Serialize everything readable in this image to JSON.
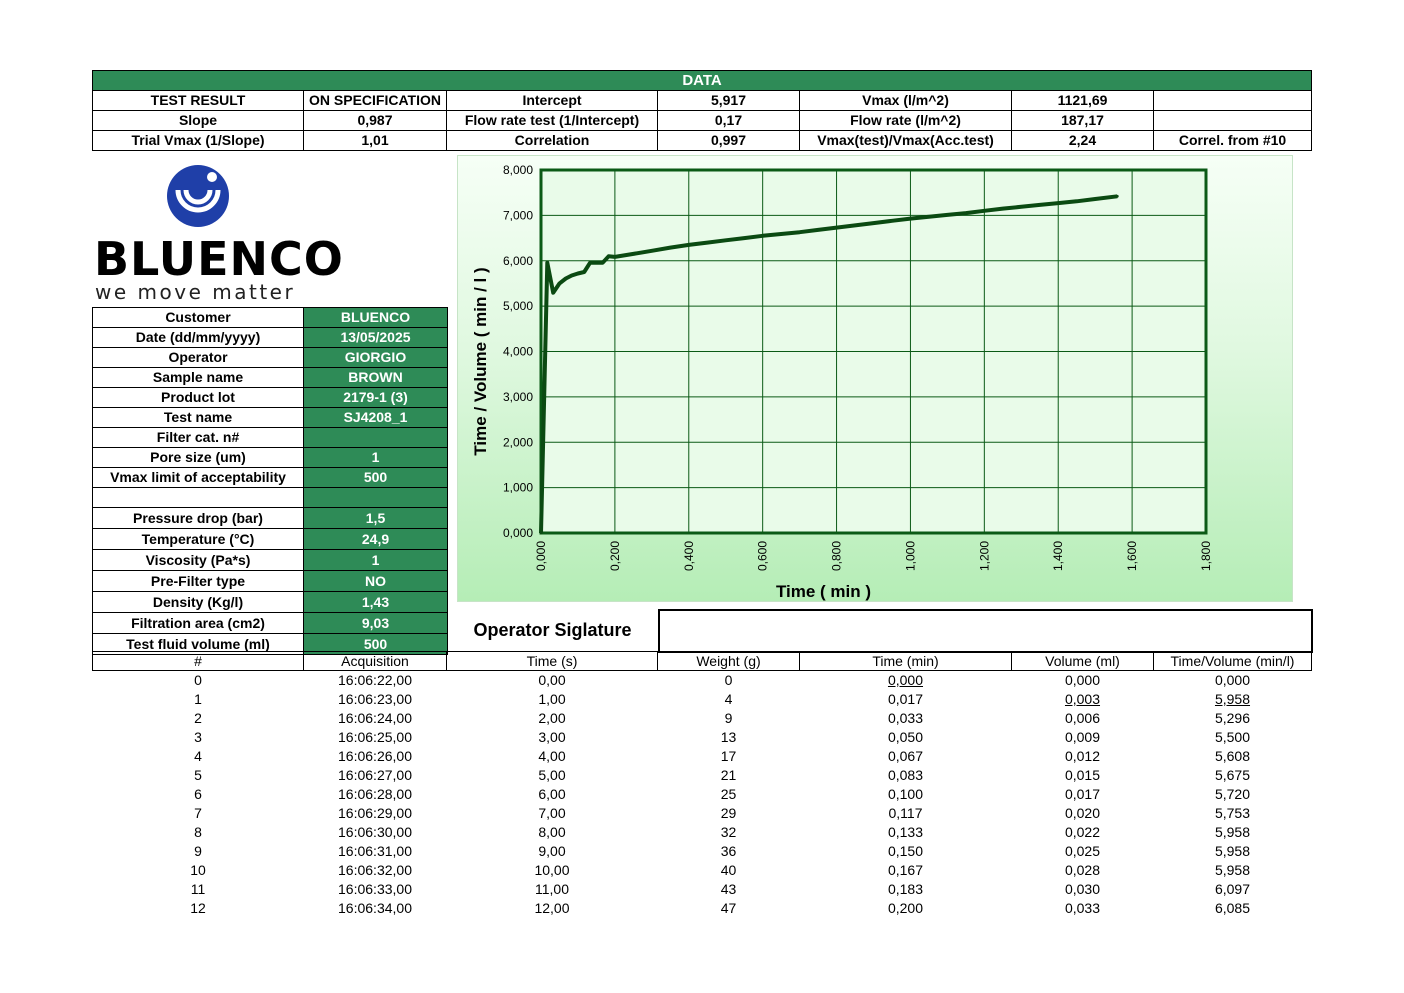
{
  "data_section": {
    "title": "DATA",
    "rows": [
      [
        "TEST RESULT",
        "ON SPECIFICATION",
        "Intercept",
        "5,917",
        "Vmax (l/m^2)",
        "1121,69",
        ""
      ],
      [
        "Slope",
        "0,987",
        "Flow rate test (1/Intercept)",
        "0,17",
        "Flow rate (l/m^2)",
        "187,17",
        ""
      ],
      [
        "Trial Vmax (1/Slope)",
        "1,01",
        "Correlation",
        "0,997",
        "Vmax(test)/Vmax(Acc.test)",
        "2,24",
        "Correl. from #10"
      ]
    ]
  },
  "logo": {
    "brand": "BLUENCO",
    "tagline": "we move matter",
    "color": "#1f3fa8"
  },
  "parameters": [
    {
      "label": "Customer",
      "value": "BLUENCO"
    },
    {
      "label": "Date (dd/mm/yyyy)",
      "value": "13/05/2025"
    },
    {
      "label": "Operator",
      "value": "GIORGIO"
    },
    {
      "label": "Sample name",
      "value": "BROWN"
    },
    {
      "label": "Product lot",
      "value": "2179-1 (3)"
    },
    {
      "label": "Test name",
      "value": "SJ4208_1"
    },
    {
      "label": "Filter cat. n#",
      "value": ""
    },
    {
      "label": "Pore size (um)",
      "value": "1"
    },
    {
      "label": "Vmax limit of acceptability",
      "value": "500"
    },
    {
      "label": "",
      "value": ""
    },
    {
      "label": "Pressure drop (bar)",
      "value": "1,5"
    },
    {
      "label": "Temperature (°C)",
      "value": "24,9"
    },
    {
      "label": "Viscosity (Pa*s)",
      "value": "1"
    },
    {
      "label": "Pre-Filter type",
      "value": "NO"
    },
    {
      "label": "Density (Kg/l)",
      "value": "1,43"
    },
    {
      "label": "Filtration area (cm2)",
      "value": "9,03"
    },
    {
      "label": "Test fluid volume (ml)",
      "value": "500"
    }
  ],
  "chart_data": {
    "type": "line",
    "xlabel": "Time ( min )",
    "ylabel": "Time / Volume ( min / l )",
    "xlim": [
      0,
      1.8
    ],
    "ylim": [
      0,
      8000
    ],
    "xticks": [
      "0,000",
      "0,200",
      "0,400",
      "0,600",
      "0,800",
      "1,000",
      "1,200",
      "1,400",
      "1,600",
      "1,800"
    ],
    "yticks": [
      "0,000",
      "1,000",
      "2,000",
      "3,000",
      "4,000",
      "5,000",
      "6,000",
      "7,000",
      "8,000"
    ],
    "grid": true,
    "line_color": "#0b4a12",
    "series": [
      {
        "x": [
          0,
          0.017,
          0.033,
          0.05,
          0.067,
          0.083,
          0.1,
          0.117,
          0.133,
          0.15,
          0.167,
          0.183,
          0.2,
          0.25,
          0.3,
          0.35,
          0.4,
          0.45,
          0.5,
          0.55,
          0.6,
          0.65,
          0.7,
          0.75,
          0.8,
          0.85,
          0.9,
          0.95,
          1.0,
          1.05,
          1.1,
          1.15,
          1.2,
          1.25,
          1.3,
          1.35,
          1.4,
          1.45,
          1.5,
          1.56
        ],
        "y": [
          0,
          5958,
          5296,
          5500,
          5608,
          5675,
          5720,
          5753,
          5958,
          5958,
          5958,
          6097,
          6085,
          6150,
          6220,
          6290,
          6350,
          6400,
          6450,
          6500,
          6550,
          6590,
          6630,
          6680,
          6730,
          6780,
          6830,
          6880,
          6930,
          6970,
          7010,
          7050,
          7100,
          7150,
          7190,
          7230,
          7270,
          7310,
          7360,
          7420
        ]
      }
    ]
  },
  "operator_signature": {
    "label": "Operator Siglature",
    "value": ""
  },
  "acquisition": {
    "headers": [
      "#",
      "Acquisition",
      "Time (s)",
      "Weight (g)",
      "Time (min)",
      "Volume (ml)",
      "Time/Volume (min/l)"
    ],
    "rows": [
      [
        "0",
        "16:06:22,00",
        "0,00",
        "0",
        "0,000",
        "0,000",
        "0,000"
      ],
      [
        "1",
        "16:06:23,00",
        "1,00",
        "4",
        "0,017",
        "0,003",
        "5,958"
      ],
      [
        "2",
        "16:06:24,00",
        "2,00",
        "9",
        "0,033",
        "0,006",
        "5,296"
      ],
      [
        "3",
        "16:06:25,00",
        "3,00",
        "13",
        "0,050",
        "0,009",
        "5,500"
      ],
      [
        "4",
        "16:06:26,00",
        "4,00",
        "17",
        "0,067",
        "0,012",
        "5,608"
      ],
      [
        "5",
        "16:06:27,00",
        "5,00",
        "21",
        "0,083",
        "0,015",
        "5,675"
      ],
      [
        "6",
        "16:06:28,00",
        "6,00",
        "25",
        "0,100",
        "0,017",
        "5,720"
      ],
      [
        "7",
        "16:06:29,00",
        "7,00",
        "29",
        "0,117",
        "0,020",
        "5,753"
      ],
      [
        "8",
        "16:06:30,00",
        "8,00",
        "32",
        "0,133",
        "0,022",
        "5,958"
      ],
      [
        "9",
        "16:06:31,00",
        "9,00",
        "36",
        "0,150",
        "0,025",
        "5,958"
      ],
      [
        "10",
        "16:06:32,00",
        "10,00",
        "40",
        "0,167",
        "0,028",
        "5,958"
      ],
      [
        "11",
        "16:06:33,00",
        "11,00",
        "43",
        "0,183",
        "0,030",
        "6,097"
      ],
      [
        "12",
        "16:06:34,00",
        "12,00",
        "47",
        "0,200",
        "0,033",
        "6,085"
      ]
    ]
  }
}
